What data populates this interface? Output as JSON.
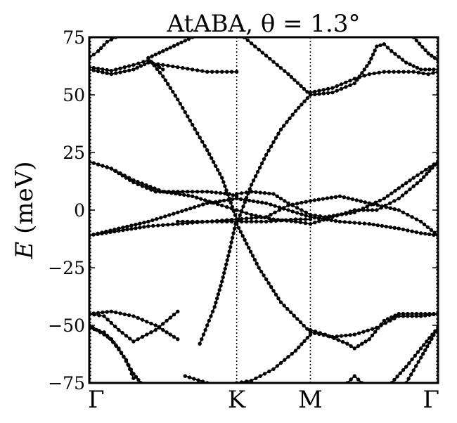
{
  "chart_data": {
    "type": "line",
    "title": "AtABA, θ = 1.3°",
    "ylabel_symbol": "E",
    "ylabel_unit": "(meV)",
    "xlabel": "",
    "ylim": [
      -75,
      75
    ],
    "yticks": [
      -75,
      -50,
      -25,
      0,
      25,
      50,
      75
    ],
    "ytick_labels": [
      "−75",
      "−50",
      "−25",
      "0",
      "25",
      "50",
      "75"
    ],
    "high_symmetry_points": [
      {
        "label": "Γ",
        "position": 0
      },
      {
        "label": "K",
        "position": 1
      },
      {
        "label": "M",
        "position": 1.5
      },
      {
        "label": "Γ",
        "position": 2.366
      }
    ],
    "grid": false,
    "legend": "none",
    "marker_color": "#000000",
    "series": [
      {
        "points": [
          [
            0,
            61
          ],
          [
            0.15,
            59
          ],
          [
            0.3,
            61
          ],
          [
            0.4,
            64
          ],
          [
            0.5,
            63
          ],
          [
            0.6,
            62
          ],
          [
            0.7,
            61
          ],
          [
            0.8,
            60
          ],
          [
            0.9,
            60
          ],
          [
            1,
            60
          ]
        ]
      },
      {
        "points": [
          [
            0,
            62
          ],
          [
            0.15,
            60.5
          ],
          [
            0.3,
            63
          ],
          [
            0.4,
            65
          ],
          [
            0.5,
            61
          ]
        ]
      },
      {
        "points": [
          [
            0,
            66
          ],
          [
            0.06,
            69
          ],
          [
            0.12,
            73
          ],
          [
            0.18,
            75
          ]
        ]
      },
      {
        "points": [
          [
            0.4,
            66
          ],
          [
            0.5,
            69
          ],
          [
            0.6,
            72
          ],
          [
            0.7,
            75
          ]
        ]
      },
      {
        "points": [
          [
            0.4,
            66
          ],
          [
            0.5,
            58
          ],
          [
            0.6,
            48
          ],
          [
            0.7,
            37
          ],
          [
            0.8,
            26
          ],
          [
            0.9,
            14
          ],
          [
            0.95,
            5
          ],
          [
            1,
            -4
          ]
        ]
      },
      {
        "points": [
          [
            1.05,
            75
          ],
          [
            1.2,
            67
          ],
          [
            1.35,
            59
          ],
          [
            1.5,
            50
          ]
        ]
      },
      {
        "points": [
          [
            1,
            -6
          ],
          [
            1.1,
            11
          ],
          [
            1.2,
            24
          ],
          [
            1.3,
            35
          ],
          [
            1.4,
            43
          ],
          [
            1.5,
            50
          ]
        ]
      },
      {
        "points": [
          [
            1,
            -4
          ],
          [
            0.95,
            -18
          ],
          [
            0.9,
            -31
          ],
          [
            0.85,
            -42
          ],
          [
            0.8,
            -50
          ],
          [
            0.75,
            -58
          ]
        ]
      },
      {
        "points": [
          [
            1,
            -6
          ],
          [
            1.15,
            -25
          ],
          [
            1.3,
            -40
          ],
          [
            1.5,
            -53
          ]
        ]
      },
      {
        "points": [
          [
            0.65,
            -72
          ],
          [
            0.8,
            -75
          ]
        ]
      },
      {
        "points": [
          [
            1,
            -75
          ],
          [
            1.1,
            -74
          ],
          [
            1.25,
            -69
          ],
          [
            1.4,
            -61
          ],
          [
            1.5,
            -54
          ]
        ]
      },
      {
        "points": [
          [
            1.5,
            50
          ],
          [
            1.65,
            51
          ],
          [
            1.8,
            55
          ],
          [
            1.9,
            64
          ],
          [
            1.95,
            71
          ],
          [
            2.0,
            72
          ],
          [
            2.05,
            69
          ],
          [
            2.15,
            64
          ],
          [
            2.25,
            61
          ],
          [
            2.366,
            61
          ]
        ]
      },
      {
        "points": [
          [
            1.5,
            51
          ],
          [
            1.65,
            53
          ],
          [
            1.8,
            57
          ],
          [
            1.9,
            59
          ],
          [
            2.0,
            60
          ],
          [
            2.1,
            60
          ],
          [
            2.2,
            60
          ],
          [
            2.3,
            59
          ],
          [
            2.366,
            60
          ]
        ]
      },
      {
        "points": [
          [
            2.2,
            75
          ],
          [
            2.3,
            68
          ],
          [
            2.366,
            65
          ]
        ]
      },
      {
        "points": [
          [
            0,
            21
          ],
          [
            0.15,
            18
          ],
          [
            0.3,
            12
          ],
          [
            0.45,
            8
          ],
          [
            0.6,
            8
          ],
          [
            0.8,
            8
          ],
          [
            0.95,
            7
          ],
          [
            1,
            6
          ]
        ]
      },
      {
        "points": [
          [
            0,
            21
          ],
          [
            0.15,
            18
          ],
          [
            0.3,
            13
          ],
          [
            0.5,
            8
          ],
          [
            0.7,
            6
          ],
          [
            0.9,
            2
          ],
          [
            1,
            0
          ]
        ]
      },
      {
        "points": [
          [
            1,
            0
          ],
          [
            1.1,
            -2
          ],
          [
            1.25,
            -4
          ],
          [
            1.4,
            -5
          ],
          [
            1.5,
            -6
          ],
          [
            1.65,
            -3
          ],
          [
            1.8,
            0
          ],
          [
            1.95,
            0
          ],
          [
            2.1,
            5
          ],
          [
            2.25,
            13
          ],
          [
            2.366,
            21
          ]
        ]
      },
      {
        "points": [
          [
            1,
            7
          ],
          [
            1.1,
            8
          ],
          [
            1.25,
            7
          ],
          [
            1.35,
            3
          ],
          [
            1.5,
            -2
          ],
          [
            1.6,
            -3
          ],
          [
            1.8,
            -1
          ],
          [
            2.0,
            5
          ],
          [
            2.2,
            14
          ],
          [
            2.366,
            21
          ]
        ]
      },
      {
        "points": [
          [
            0,
            -11
          ],
          [
            0.2,
            -8
          ],
          [
            0.4,
            -5
          ],
          [
            0.6,
            -1
          ],
          [
            0.8,
            3
          ],
          [
            1,
            5
          ],
          [
            1.2,
            3
          ],
          [
            1.35,
            0
          ],
          [
            1.5,
            -3
          ],
          [
            1.7,
            -5
          ],
          [
            1.9,
            -6
          ],
          [
            2.1,
            -8
          ],
          [
            2.25,
            -10
          ],
          [
            2.366,
            -11
          ]
        ]
      },
      {
        "points": [
          [
            0,
            -11
          ],
          [
            0.2,
            -9
          ],
          [
            0.4,
            -7
          ],
          [
            0.6,
            -6
          ],
          [
            0.8,
            -5
          ],
          [
            1,
            -4
          ],
          [
            1.2,
            -3
          ],
          [
            1.35,
            2
          ],
          [
            1.5,
            4
          ],
          [
            1.7,
            6
          ],
          [
            1.9,
            3
          ],
          [
            2.1,
            0
          ],
          [
            2.25,
            -5
          ],
          [
            2.366,
            -11
          ]
        ]
      },
      {
        "points": [
          [
            0.6,
            -5
          ],
          [
            0.8,
            -5
          ],
          [
            1,
            -5
          ],
          [
            1.2,
            -5
          ],
          [
            1.4,
            -4
          ],
          [
            1.5,
            -4
          ]
        ]
      },
      {
        "points": [
          [
            0,
            -45
          ],
          [
            0.15,
            -44
          ],
          [
            0.3,
            -46
          ],
          [
            0.45,
            -50
          ],
          [
            0.6,
            -56
          ]
        ]
      },
      {
        "points": [
          [
            0,
            -45
          ],
          [
            0.1,
            -46
          ],
          [
            0.2,
            -52
          ],
          [
            0.3,
            -57
          ],
          [
            0.45,
            -52
          ],
          [
            0.6,
            -44
          ]
        ]
      },
      {
        "points": [
          [
            0,
            -51
          ],
          [
            0.1,
            -53
          ],
          [
            0.2,
            -60
          ],
          [
            0.3,
            -71
          ],
          [
            0.35,
            -75
          ]
        ]
      },
      {
        "points": [
          [
            0,
            -50
          ],
          [
            0.15,
            -56
          ],
          [
            0.25,
            -65
          ],
          [
            0.3,
            -73
          ]
        ]
      },
      {
        "points": [
          [
            1.5,
            -52
          ],
          [
            1.6,
            -54
          ],
          [
            1.75,
            -58
          ],
          [
            1.8,
            -60
          ],
          [
            1.9,
            -56
          ],
          [
            2.0,
            -48
          ],
          [
            2.1,
            -45
          ],
          [
            2.25,
            -45
          ],
          [
            2.366,
            -45
          ]
        ]
      },
      {
        "points": [
          [
            1.5,
            -53
          ],
          [
            1.65,
            -55
          ],
          [
            1.8,
            -54
          ],
          [
            1.95,
            -51
          ],
          [
            2.1,
            -46
          ],
          [
            2.25,
            -46
          ],
          [
            2.366,
            -45
          ]
        ]
      },
      {
        "points": [
          [
            1.75,
            -75
          ],
          [
            1.8,
            -72
          ],
          [
            1.85,
            -75
          ]
        ]
      },
      {
        "points": [
          [
            2.05,
            -75
          ],
          [
            2.15,
            -68
          ],
          [
            2.25,
            -60
          ],
          [
            2.366,
            -51
          ]
        ]
      },
      {
        "points": [
          [
            2.15,
            -75
          ],
          [
            2.25,
            -64
          ],
          [
            2.366,
            -51
          ]
        ]
      }
    ]
  }
}
